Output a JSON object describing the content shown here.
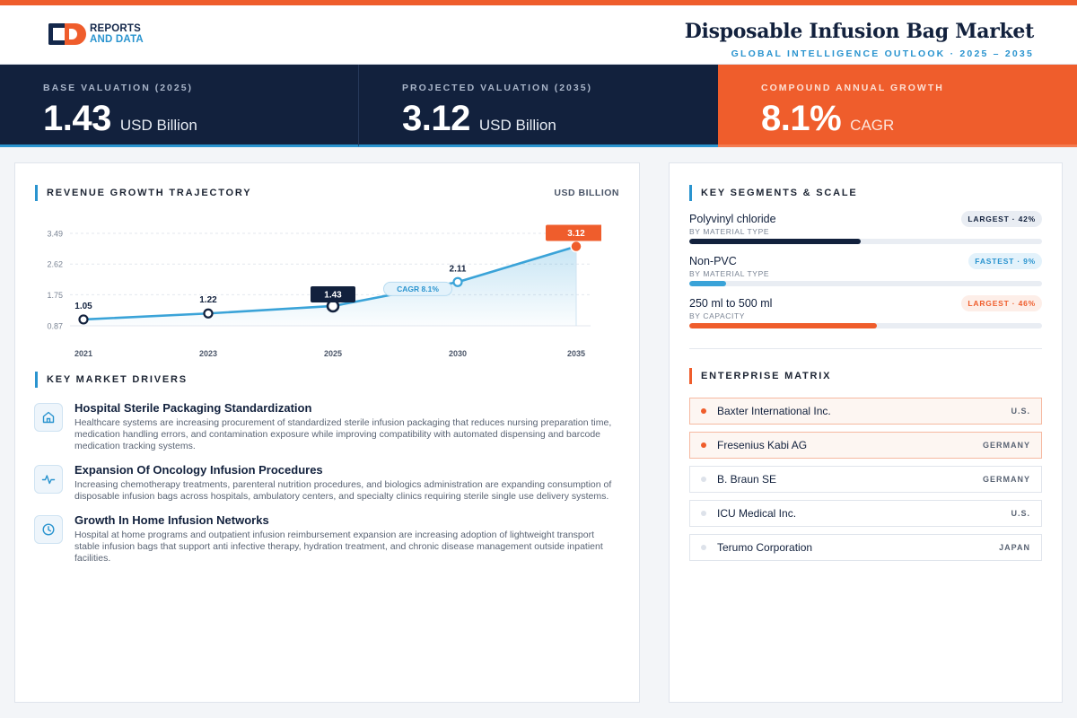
{
  "brand": {
    "line1": "REPORTS",
    "line2": "AND DATA"
  },
  "header": {
    "title": "Disposable Infusion Bag Market",
    "subtitle": "GLOBAL INTELLIGENCE OUTLOOK  ·  2025 – 2035"
  },
  "kpis": [
    {
      "label": "BASE VALUATION (2025)",
      "value": "1.43",
      "unit": "USD Billion"
    },
    {
      "label": "PROJECTED VALUATION (2035)",
      "value": "3.12",
      "unit": "USD Billion"
    },
    {
      "label": "COMPOUND ANNUAL GROWTH",
      "value": "8.1%",
      "unit": "CAGR"
    }
  ],
  "chart_section": {
    "title": "REVENUE GROWTH TRAJECTORY",
    "unit": "USD BILLION"
  },
  "chart_data": {
    "type": "area",
    "x": [
      "2021",
      "2023",
      "2025",
      "2030",
      "2035"
    ],
    "values": [
      1.05,
      1.22,
      1.43,
      2.11,
      3.12
    ],
    "value_labels": [
      "1.05",
      "1.22",
      "1.43",
      "2.11",
      "3.12"
    ],
    "y_ticks": [
      "3.49",
      "2.62",
      "1.75",
      "0.87"
    ],
    "y_tick_values": [
      3.49,
      2.62,
      1.75,
      0.87
    ],
    "ylim": [
      0.87,
      3.49
    ],
    "annotation": "CAGR 8.1%",
    "highlight_base_index": 2,
    "highlight_end_index": 4,
    "grid": true,
    "colors": {
      "line": "#3aa3d8",
      "area": "#3aa3d8",
      "base": "#12213d",
      "end": "#ef5d2c"
    }
  },
  "drivers_section": {
    "title": "KEY MARKET DRIVERS"
  },
  "drivers": [
    {
      "icon": "hospital-icon",
      "title": "Hospital Sterile Packaging Standardization",
      "text": "Healthcare systems are increasing procurement of standardized sterile infusion packaging that reduces nursing preparation time, medication handling errors, and contamination exposure while improving compatibility with automated dispensing and barcode medication tracking systems."
    },
    {
      "icon": "pulse-icon",
      "title": "Expansion Of Oncology Infusion Procedures",
      "text": "Increasing chemotherapy treatments, parenteral nutrition procedures, and biologics administration are expanding consumption of disposable infusion bags across hospitals, ambulatory centers, and specialty clinics requiring sterile single use delivery systems."
    },
    {
      "icon": "clock-icon",
      "title": "Growth In Home Infusion Networks",
      "text": "Hospital at home programs and outpatient infusion reimbursement expansion are increasing adoption of lightweight transport stable infusion bags that support anti infective therapy, hydration treatment, and chronic disease management outside inpatient facilities."
    }
  ],
  "segments_section": {
    "title": "KEY SEGMENTS & SCALE"
  },
  "segments": [
    {
      "name": "Polyvinyl chloride",
      "sub": "BY MATERIAL TYPE",
      "badge": "LARGEST · 42%",
      "share": 0.42,
      "color": "#12213d"
    },
    {
      "name": "Non-PVC",
      "sub": "BY MATERIAL TYPE",
      "badge": "FASTEST · 9%",
      "share": 0.09,
      "color": "#3aa3d8"
    },
    {
      "name": "250 ml to 500 ml",
      "sub": "BY CAPACITY",
      "badge": "LARGEST · 46%",
      "share": 0.46,
      "color": "#ef5d2c"
    }
  ],
  "matrix_section": {
    "title": "ENTERPRISE MATRIX"
  },
  "companies": [
    {
      "name": "Baxter International Inc.",
      "country": "U.S."
    },
    {
      "name": "Fresenius Kabi AG",
      "country": "GERMANY"
    },
    {
      "name": "B. Braun SE",
      "country": "GERMANY"
    },
    {
      "name": "ICU Medical Inc.",
      "country": "U.S."
    },
    {
      "name": "Terumo Corporation",
      "country": "JAPAN"
    }
  ]
}
